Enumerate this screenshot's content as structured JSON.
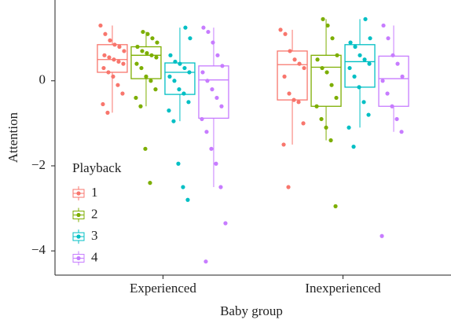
{
  "chart_data": {
    "type": "box",
    "xlabel": "Baby group",
    "ylabel": "Attention",
    "categories": [
      "Experienced",
      "Inexperienced"
    ],
    "legend_title": "Playback",
    "legend_position": "bottom-left",
    "ylim": [
      -4.57,
      1.9
    ],
    "yticks": [
      {
        "value": -4,
        "label": "−4"
      },
      {
        "value": -2,
        "label": "−2"
      },
      0
    ],
    "series": [
      {
        "name": "1",
        "color": "#F8766D",
        "boxes": [
          {
            "low": -0.75,
            "q1": 0.2,
            "median": 0.5,
            "q3": 0.85,
            "high": 1.3
          },
          {
            "low": -1.5,
            "q1": -0.45,
            "median": 0.38,
            "q3": 0.7,
            "high": 1.2
          }
        ],
        "points": [
          [
            1.3,
            1.1,
            0.95,
            0.85,
            0.8,
            0.7,
            0.6,
            0.55,
            0.5,
            0.45,
            0.4,
            0.3,
            0.2,
            0.1,
            -0.1,
            -0.3,
            -0.55,
            -0.75
          ],
          [
            1.2,
            1.1,
            0.7,
            0.5,
            0.4,
            0.3,
            0.1,
            -0.3,
            -0.45,
            -0.5,
            -1.0,
            -1.5,
            -2.5
          ]
        ]
      },
      {
        "name": "2",
        "color": "#7CAE00",
        "boxes": [
          {
            "low": -0.6,
            "q1": 0.05,
            "median": 0.6,
            "q3": 0.8,
            "high": 1.15
          },
          {
            "low": -1.4,
            "q1": -0.6,
            "median": 0.32,
            "q3": 0.6,
            "high": 1.45
          }
        ],
        "points": [
          [
            1.15,
            1.1,
            1.0,
            0.9,
            0.8,
            0.7,
            0.65,
            0.6,
            0.55,
            0.4,
            0.3,
            0.1,
            0.0,
            -0.2,
            -0.4,
            -0.6,
            -1.6,
            -2.4
          ],
          [
            1.45,
            1.3,
            1.0,
            0.6,
            0.5,
            0.3,
            0.2,
            -0.1,
            -0.4,
            -0.6,
            -0.9,
            -1.1,
            -1.4,
            -2.95
          ]
        ]
      },
      {
        "name": "3",
        "color": "#00BFC4",
        "boxes": [
          {
            "low": -0.95,
            "q1": -0.32,
            "median": 0.2,
            "q3": 0.42,
            "high": 1.25
          },
          {
            "low": -1.1,
            "q1": -0.15,
            "median": 0.45,
            "q3": 0.85,
            "high": 1.45
          }
        ],
        "points": [
          [
            1.25,
            1.0,
            0.6,
            0.45,
            0.4,
            0.3,
            0.2,
            0.1,
            0.0,
            -0.2,
            -0.3,
            -0.5,
            -0.7,
            -0.95,
            -1.95,
            -2.5,
            -2.8
          ],
          [
            1.45,
            1.0,
            0.9,
            0.8,
            0.6,
            0.5,
            0.4,
            0.3,
            0.1,
            -0.15,
            -0.5,
            -0.8,
            -1.1,
            -1.55
          ]
        ]
      },
      {
        "name": "4",
        "color": "#C77CFF",
        "boxes": [
          {
            "low": -2.5,
            "q1": -0.88,
            "median": 0.02,
            "q3": 0.35,
            "high": 1.25
          },
          {
            "low": -1.2,
            "q1": -0.6,
            "median": 0.05,
            "q3": 0.58,
            "high": 1.3
          }
        ],
        "points": [
          [
            1.25,
            1.15,
            0.9,
            0.6,
            0.35,
            0.2,
            0.0,
            -0.2,
            -0.4,
            -0.6,
            -0.9,
            -1.2,
            -1.6,
            -1.95,
            -2.5,
            -3.35,
            -4.25
          ],
          [
            1.3,
            1.0,
            0.6,
            0.4,
            0.1,
            0.0,
            -0.3,
            -0.6,
            -0.9,
            -1.2,
            -3.65
          ]
        ]
      }
    ]
  }
}
